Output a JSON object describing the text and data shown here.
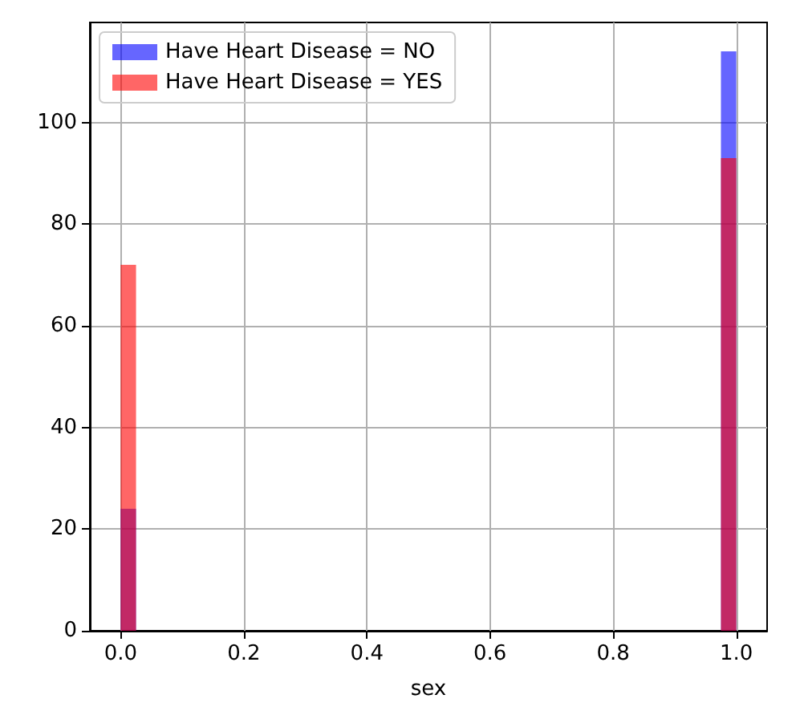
{
  "chart_data": {
    "type": "histogram",
    "xlabel": "sex",
    "bins": [
      0,
      0.025,
      0.975,
      1
    ],
    "series": [
      {
        "name": "Have Heart Disease = NO",
        "color": "#0000ff",
        "values": [
          24,
          0,
          114
        ]
      },
      {
        "name": "Have Heart Disease = YES",
        "color": "#ff0000",
        "values": [
          72,
          0,
          93
        ]
      }
    ],
    "xlim": [
      -0.05,
      1.05
    ],
    "ylim": [
      0,
      119.7
    ],
    "xticks": [
      {
        "value": 0,
        "label": "0.0"
      },
      {
        "value": 0.2,
        "label": "0.2"
      },
      {
        "value": 0.4,
        "label": "0.4"
      },
      {
        "value": 0.6,
        "label": "0.6"
      },
      {
        "value": 0.8,
        "label": "0.8"
      },
      {
        "value": 1,
        "label": "1.0"
      }
    ],
    "yticks": [
      0,
      20,
      40,
      60,
      80,
      100
    ],
    "grid": true,
    "legend": "top left"
  }
}
